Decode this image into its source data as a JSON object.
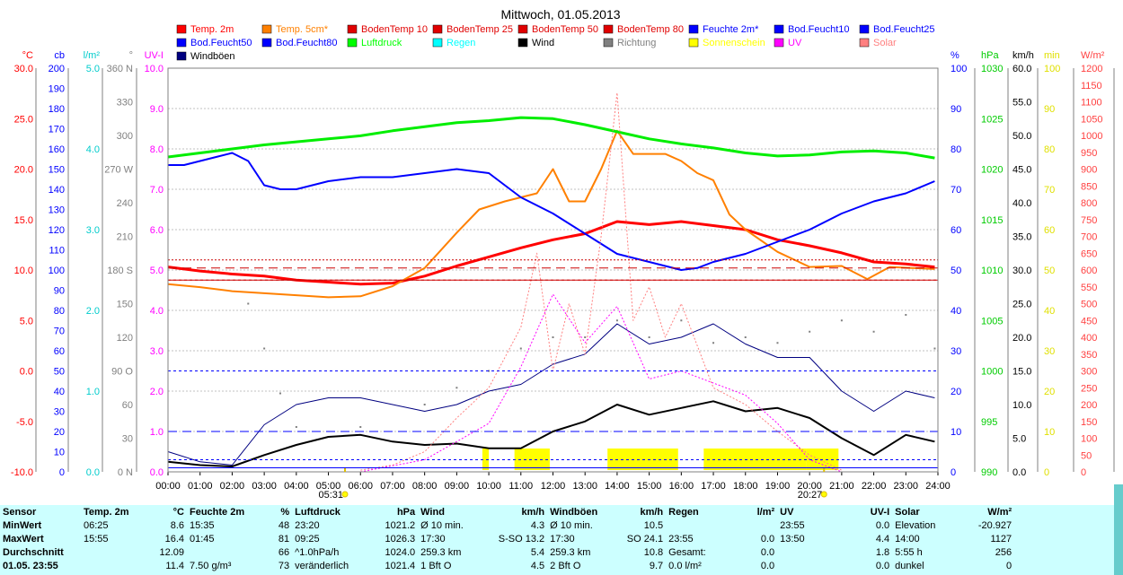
{
  "chart_data": {
    "type": "line",
    "title": "Mittwoch, 01.05.2013",
    "x_ticks": [
      "00:00",
      "01:00",
      "02:00",
      "03:00",
      "04:00",
      "05:00",
      "06:00",
      "07:00",
      "08:00",
      "09:00",
      "10:00",
      "11:00",
      "12:00",
      "13:00",
      "14:00",
      "15:00",
      "16:00",
      "17:00",
      "18:00",
      "19:00",
      "20:00",
      "21:00",
      "22:00",
      "23:00",
      "24:00"
    ],
    "sunrise": "05:31",
    "sunset": "20:27",
    "legend": [
      {
        "name": "Temp. 2m",
        "color": "#ff0000"
      },
      {
        "name": "Temp. 5cm*",
        "color": "#ff8000"
      },
      {
        "name": "BodenTemp 10",
        "color": "#e00000"
      },
      {
        "name": "BodenTemp 25",
        "color": "#e00000"
      },
      {
        "name": "BodenTemp 50",
        "color": "#e00000"
      },
      {
        "name": "BodenTemp 80",
        "color": "#e00000"
      },
      {
        "name": "Feuchte 2m*",
        "color": "#0000ff"
      },
      {
        "name": "Bod.Feucht10",
        "color": "#0000ff"
      },
      {
        "name": "Bod.Feucht25",
        "color": "#0000ff"
      },
      {
        "name": "Bod.Feucht50",
        "color": "#0000ff"
      },
      {
        "name": "Bod.Feucht80",
        "color": "#0000ff"
      },
      {
        "name": "Luftdruck",
        "color": "#00ff00"
      },
      {
        "name": "Regen",
        "color": "#00ffff"
      },
      {
        "name": "Wind",
        "color": "#000000"
      },
      {
        "name": "Richtung",
        "color": "#808080"
      },
      {
        "name": "Sonnenschein",
        "color": "#ffff00"
      },
      {
        "name": "UV",
        "color": "#ff00ff"
      },
      {
        "name": "Solar",
        "color": "#ff8080"
      },
      {
        "name": "Windböen",
        "color": "#000080"
      }
    ],
    "axes": {
      "temp": {
        "unit": "°C",
        "color": "#ff0000",
        "ticks": [
          "30.0",
          "25.0",
          "20.0",
          "15.0",
          "10.0",
          "5.0",
          "0.0",
          "-5.0",
          "-10.0"
        ]
      },
      "cb": {
        "unit": "cb",
        "color": "#0000ff",
        "ticks": [
          "200",
          "190",
          "180",
          "170",
          "160",
          "150",
          "140",
          "130",
          "120",
          "110",
          "100",
          "90",
          "80",
          "70",
          "60",
          "50",
          "40",
          "30",
          "20",
          "10",
          "0"
        ]
      },
      "rain": {
        "unit": "l/m²",
        "color": "#00cccc",
        "ticks": [
          "5.0",
          "4.0",
          "3.0",
          "2.0",
          "1.0",
          "0.0"
        ]
      },
      "dir": {
        "unit": "°",
        "color": "#808080",
        "ticks": [
          "360 N",
          "330",
          "300",
          "270 W",
          "240",
          "210",
          "180 S",
          "150",
          "120",
          "90 O",
          "60",
          "30",
          "0 N"
        ]
      },
      "uv": {
        "unit": "UV-I",
        "color": "#ff00ff",
        "ticks": [
          "10.0",
          "9.0",
          "8.0",
          "7.0",
          "6.0",
          "5.0",
          "4.0",
          "3.0",
          "2.0",
          "1.0",
          "0.0"
        ]
      },
      "hum": {
        "unit": "%",
        "color": "#0000ff",
        "ticks": [
          "100",
          "90",
          "80",
          "70",
          "60",
          "50",
          "40",
          "30",
          "20",
          "10",
          "0"
        ]
      },
      "press": {
        "unit": "hPa",
        "color": "#00cc00",
        "ticks": [
          "1030",
          "1025",
          "1020",
          "1015",
          "1010",
          "1005",
          "1000",
          "995",
          "990"
        ]
      },
      "wind": {
        "unit": "km/h",
        "color": "#000000",
        "ticks": [
          "60.0",
          "55.0",
          "50.0",
          "45.0",
          "40.0",
          "35.0",
          "30.0",
          "25.0",
          "20.0",
          "15.0",
          "10.0",
          "5.0",
          "0.0"
        ]
      },
      "min": {
        "unit": "min",
        "color": "#e0e000",
        "ticks": [
          "100",
          "90",
          "80",
          "70",
          "60",
          "50",
          "40",
          "30",
          "20",
          "10",
          "0"
        ]
      },
      "solar": {
        "unit": "W/m²",
        "color": "#ff4040",
        "ticks": [
          "1200",
          "1150",
          "1100",
          "1050",
          "1000",
          "950",
          "900",
          "850",
          "800",
          "750",
          "700",
          "650",
          "600",
          "550",
          "500",
          "450",
          "400",
          "350",
          "300",
          "250",
          "200",
          "150",
          "100",
          "50",
          "0"
        ]
      }
    },
    "series": [
      {
        "name": "Temp. 2m",
        "axis": "temp",
        "x": [
          0,
          1,
          2,
          3,
          4,
          5,
          6,
          7,
          8,
          9,
          10,
          11,
          12,
          13,
          14,
          15,
          16,
          17,
          18,
          19,
          20,
          21,
          22,
          23,
          23.9
        ],
        "y": [
          10.3,
          9.9,
          9.6,
          9.4,
          9.0,
          8.8,
          8.6,
          8.7,
          9.4,
          10.4,
          11.3,
          12.2,
          13.0,
          13.6,
          14.8,
          14.5,
          14.8,
          14.4,
          14.0,
          13.0,
          12.4,
          11.7,
          10.8,
          10.6,
          10.3
        ]
      },
      {
        "name": "Temp. 5cm*",
        "axis": "temp",
        "x": [
          0,
          1,
          2,
          3,
          4,
          5,
          6,
          7,
          8,
          9,
          9.7,
          10.5,
          11.5,
          12,
          12.5,
          13,
          13.5,
          14,
          14.5,
          15,
          15.5,
          16,
          16.5,
          17,
          17.5,
          18,
          19,
          20,
          21,
          21.8,
          22.5,
          23.9
        ],
        "y": [
          8.6,
          8.3,
          7.9,
          7.7,
          7.5,
          7.3,
          7.4,
          8.4,
          10.2,
          13.7,
          16.0,
          16.8,
          17.6,
          20.0,
          16.8,
          16.8,
          20.0,
          23.8,
          21.5,
          21.5,
          21.5,
          20.8,
          19.6,
          18.9,
          15.5,
          14.0,
          11.8,
          10.3,
          10.4,
          9.1,
          10.3,
          10.1
        ]
      },
      {
        "name": "Feuchte 2m*",
        "axis": "hum",
        "x": [
          0,
          0.5,
          1,
          1.5,
          2,
          2.5,
          3,
          3.5,
          4,
          5,
          6,
          7,
          8,
          9,
          10,
          10.5,
          11,
          12,
          13,
          14,
          15,
          16,
          16.5,
          17,
          18,
          19,
          20,
          21,
          22,
          23,
          23.9
        ],
        "y": [
          76,
          76,
          77,
          78,
          79,
          77,
          71,
          70,
          70,
          72,
          73,
          73,
          74,
          75,
          74,
          71,
          68,
          64,
          59,
          54,
          52,
          50,
          50.5,
          52,
          54,
          57,
          60,
          64,
          67,
          69,
          72
        ]
      },
      {
        "name": "Luftdruck",
        "axis": "press",
        "x": [
          0,
          1,
          2,
          3,
          4,
          5,
          6,
          7,
          8,
          9,
          10,
          11,
          12,
          13,
          14,
          15,
          16,
          17,
          18,
          19,
          20,
          21,
          22,
          23,
          23.9
        ],
        "y": [
          1021.2,
          1021.6,
          1022.0,
          1022.4,
          1022.7,
          1023.0,
          1023.3,
          1023.8,
          1024.2,
          1024.6,
          1024.8,
          1025.1,
          1025.0,
          1024.4,
          1023.7,
          1023.0,
          1022.5,
          1022.1,
          1021.6,
          1021.3,
          1021.4,
          1021.7,
          1021.8,
          1021.6,
          1021.1
        ]
      },
      {
        "name": "Wind",
        "axis": "wind",
        "x": [
          0,
          1,
          2,
          3,
          4,
          5,
          6,
          7,
          8,
          9,
          10,
          11,
          12,
          13,
          14,
          15,
          16,
          17,
          18,
          19,
          20,
          21,
          22,
          23,
          23.9
        ],
        "y": [
          1.5,
          1.0,
          0.8,
          2.5,
          4.0,
          5.2,
          5.5,
          4.5,
          4.0,
          4.2,
          3.5,
          3.5,
          6.0,
          7.5,
          10.0,
          8.5,
          9.5,
          10.5,
          9.0,
          9.5,
          8.0,
          5.0,
          2.5,
          5.5,
          4.5
        ]
      },
      {
        "name": "Windböen",
        "axis": "wind",
        "x": [
          0,
          1,
          2,
          3,
          4,
          5,
          6,
          7,
          8,
          9,
          10,
          11,
          12,
          13,
          14,
          15,
          16,
          17,
          18,
          19,
          20,
          21,
          22,
          23,
          23.9
        ],
        "y": [
          3.0,
          1.5,
          1.0,
          7.0,
          10.0,
          11.0,
          11.0,
          10.0,
          9.0,
          10.0,
          12.0,
          13.0,
          16.0,
          17.5,
          22.0,
          19.0,
          20.0,
          22.0,
          19.0,
          17.0,
          17.0,
          12.0,
          9.0,
          12.0,
          11.0
        ]
      },
      {
        "name": "Solar",
        "axis": "solar",
        "x": [
          6,
          7,
          8,
          9,
          10,
          11,
          11.5,
          12,
          12.5,
          13,
          13.5,
          14,
          14.5,
          15,
          15.5,
          16,
          17,
          18,
          19,
          20,
          21
        ],
        "y": [
          5,
          20,
          60,
          160,
          250,
          430,
          650,
          300,
          500,
          350,
          700,
          1127,
          450,
          550,
          400,
          500,
          250,
          200,
          120,
          50,
          5
        ]
      },
      {
        "name": "UV",
        "axis": "uv",
        "x": [
          6,
          8,
          10,
          11,
          12,
          13,
          14,
          15,
          16,
          17,
          18,
          19,
          20,
          21
        ],
        "y": [
          0.0,
          0.3,
          1.2,
          2.6,
          4.4,
          3.2,
          4.1,
          2.3,
          2.5,
          2.2,
          1.9,
          1.2,
          0.3,
          0.0
        ]
      },
      {
        "name": "Richtung",
        "axis": "dir",
        "type": "scatter",
        "x": [
          2.5,
          3,
          3.5,
          4,
          6,
          8,
          9,
          10,
          11,
          12,
          13,
          14,
          15,
          16,
          17,
          18,
          19,
          20,
          21,
          22,
          23,
          23.9
        ],
        "y": [
          150,
          110,
          70,
          40,
          40,
          60,
          75,
          90,
          110,
          120,
          120,
          135,
          120,
          135,
          115,
          120,
          115,
          125,
          135,
          125,
          140,
          110
        ]
      },
      {
        "name": "BodenTemp 10",
        "axis": "temp",
        "x": [
          0,
          24
        ],
        "y": [
          11.0,
          11.0
        ]
      },
      {
        "name": "BodenTemp 25",
        "axis": "temp",
        "x": [
          0,
          24
        ],
        "y": [
          10.2,
          10.2
        ]
      },
      {
        "name": "BodenTemp 50",
        "axis": "temp",
        "x": [
          0,
          24
        ],
        "y": [
          9.0,
          9.0
        ]
      },
      {
        "name": "BodenTemp 80",
        "axis": "temp",
        "x": [
          0,
          24
        ],
        "y": [
          9.0,
          9.0
        ]
      },
      {
        "name": "Bod.Feucht10",
        "axis": "hum",
        "x": [
          0,
          24
        ],
        "y": [
          25,
          25
        ]
      },
      {
        "name": "Bod.Feucht25",
        "axis": "hum",
        "x": [
          0,
          24
        ],
        "y": [
          10,
          10
        ]
      },
      {
        "name": "Bod.Feucht50",
        "axis": "hum",
        "x": [
          0,
          24
        ],
        "y": [
          3,
          3
        ]
      },
      {
        "name": "Bod.Feucht80",
        "axis": "hum",
        "x": [
          0,
          24
        ],
        "y": [
          1,
          1
        ]
      }
    ],
    "sunshine_blocks": [
      [
        9.8,
        10.0
      ],
      [
        10.8,
        11.9
      ],
      [
        13.7,
        15.9
      ],
      [
        16.7,
        19.9
      ],
      [
        19.9,
        20.9
      ]
    ]
  },
  "stats": {
    "header": [
      "Sensor",
      "Temp. 2m",
      "°C",
      "Feuchte 2m",
      "%",
      "Luftdruck",
      "hPa",
      "Wind",
      "km/h",
      "Windböen",
      "km/h",
      "Regen",
      "l/m²",
      "UV",
      "UV-I",
      "Solar",
      "W/m²"
    ],
    "rows": [
      [
        "MinWert",
        "06:25",
        "8.6",
        "15:35",
        "48",
        "23:20",
        "1021.2",
        "Ø 10 min.",
        "4.3",
        "Ø 10 min.",
        "10.5",
        "",
        "",
        "23:55",
        "0.0",
        "Elevation",
        "-20.927"
      ],
      [
        "MaxWert",
        "15:55",
        "16.4",
        "01:45",
        "81",
        "09:25",
        "1026.3",
        "17:30",
        "S-SO 13.2",
        "17:30",
        "SO 24.1",
        "23:55",
        "0.0",
        "13:50",
        "4.4",
        "14:00",
        "1127"
      ],
      [
        "Durchschnitt",
        "",
        "12.09",
        "",
        "66",
        "^1.0hPa/h",
        "1024.0",
        "259.3 km",
        "5.4",
        "259.3 km",
        "10.8",
        "Gesamt:",
        "0.0",
        "",
        "1.8",
        "5:55 h",
        "256"
      ],
      [
        "01.05. 23:55",
        "",
        "11.4",
        "7.50 g/m³",
        "73",
        "veränderlich",
        "1021.4",
        "1 Bft O",
        "4.5",
        "2 Bft O",
        "9.7",
        "0.0 l/m²",
        "0.0",
        "",
        "0.0",
        "dunkel",
        "0"
      ]
    ]
  }
}
